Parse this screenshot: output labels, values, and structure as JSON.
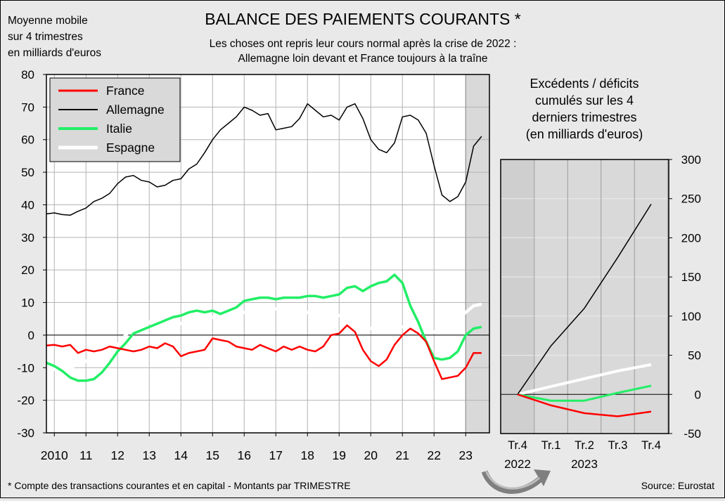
{
  "title": "BALANCE DES PAIEMENTS COURANTS *",
  "subtitle_line1": "Les choses ont repris leur cours normal après la crise de 2022 :",
  "subtitle_line2": "Allemagne loin devant et France toujours à la traîne",
  "ylabel_lines": [
    "Moyenne mobile",
    "sur 4 trimestres",
    "en milliards d'euros"
  ],
  "footnote": "* Compte des transactions courantes et en capital - Montants par TRIMESTRE",
  "source": "Source: Eurostat",
  "colors": {
    "France": "#ff0000",
    "Allemagne": "#000000",
    "Italie": "#22ee66",
    "Espagne": "#ffffff",
    "plot_bg": "#ffffff",
    "shade_bg": "#d9d9d9"
  },
  "chart_data": [
    {
      "type": "line",
      "x_tick_labels": [
        "2010",
        "11",
        "12",
        "13",
        "14",
        "15",
        "16",
        "17",
        "18",
        "19",
        "20",
        "21",
        "22",
        "23"
      ],
      "ylim": [
        -30,
        80
      ],
      "y_ticks": [
        -30,
        -20,
        -10,
        0,
        10,
        20,
        30,
        40,
        50,
        60,
        70,
        80
      ],
      "grid": true,
      "legend_position": "top-left",
      "shaded_period": "2023",
      "x_start": 2009.75,
      "x_end": 2023.75,
      "series": [
        {
          "name": "France",
          "x": [
            2009.75,
            2010,
            2010.25,
            2010.5,
            2010.75,
            2011,
            2011.25,
            2011.5,
            2011.75,
            2012,
            2012.25,
            2012.5,
            2012.75,
            2013,
            2013.25,
            2013.5,
            2013.75,
            2014,
            2014.25,
            2014.5,
            2014.75,
            2015,
            2015.25,
            2015.5,
            2015.75,
            2016,
            2016.25,
            2016.5,
            2016.75,
            2017,
            2017.25,
            2017.5,
            2017.75,
            2018,
            2018.25,
            2018.5,
            2018.75,
            2019,
            2019.25,
            2019.5,
            2019.75,
            2020,
            2020.25,
            2020.5,
            2020.75,
            2021,
            2021.25,
            2021.5,
            2021.75,
            2022,
            2022.25,
            2022.5,
            2022.75,
            2023,
            2023.25,
            2023.5
          ],
          "values": [
            -3.2,
            -3,
            -3.5,
            -3,
            -5.5,
            -4.5,
            -5,
            -4.5,
            -3.5,
            -4,
            -4.5,
            -5,
            -4.5,
            -3.5,
            -4,
            -2.5,
            -3.5,
            -6.5,
            -5.5,
            -5,
            -4.5,
            -1,
            -1.5,
            -2,
            -3.5,
            -4,
            -4.5,
            -3,
            -4,
            -5,
            -3.5,
            -4.5,
            -3.5,
            -4.5,
            -5,
            -3.5,
            0,
            0.5,
            3,
            1,
            -4.5,
            -8,
            -9.5,
            -7.5,
            -3,
            0,
            2,
            0.5,
            -2,
            -8,
            -13.5,
            -13,
            -12.5,
            -10,
            -5.5,
            -5.5
          ]
        },
        {
          "name": "Allemagne",
          "x": [
            2009.75,
            2010,
            2010.25,
            2010.5,
            2010.75,
            2011,
            2011.25,
            2011.5,
            2011.75,
            2012,
            2012.25,
            2012.5,
            2012.75,
            2013,
            2013.25,
            2013.5,
            2013.75,
            2014,
            2014.25,
            2014.5,
            2014.75,
            2015,
            2015.25,
            2015.5,
            2015.75,
            2016,
            2016.25,
            2016.5,
            2016.75,
            2017,
            2017.25,
            2017.5,
            2017.75,
            2018,
            2018.25,
            2018.5,
            2018.75,
            2019,
            2019.25,
            2019.5,
            2019.75,
            2020,
            2020.25,
            2020.5,
            2020.75,
            2021,
            2021.25,
            2021.5,
            2021.75,
            2022,
            2022.25,
            2022.5,
            2022.75,
            2023,
            2023.25,
            2023.5
          ],
          "values": [
            37.2,
            37.5,
            37,
            36.8,
            38,
            39,
            41,
            42,
            43.5,
            46.5,
            48.5,
            49,
            47.5,
            47,
            45.5,
            46,
            47.5,
            48,
            51,
            52.5,
            56,
            60,
            63,
            65,
            67,
            70,
            69,
            67.5,
            68,
            63,
            63.5,
            64,
            66.5,
            71,
            69,
            67,
            67.5,
            66,
            70,
            71,
            66.5,
            60,
            57,
            56,
            59,
            67,
            67.5,
            66,
            62,
            52,
            43,
            41,
            42.5,
            47,
            58,
            61
          ]
        },
        {
          "name": "Italie",
          "x": [
            2009.75,
            2010,
            2010.25,
            2010.5,
            2010.75,
            2011,
            2011.25,
            2011.5,
            2011.75,
            2012,
            2012.25,
            2012.5,
            2012.75,
            2013,
            2013.25,
            2013.5,
            2013.75,
            2014,
            2014.25,
            2014.5,
            2014.75,
            2015,
            2015.25,
            2015.5,
            2015.75,
            2016,
            2016.25,
            2016.5,
            2016.75,
            2017,
            2017.25,
            2017.5,
            2017.75,
            2018,
            2018.25,
            2018.5,
            2018.75,
            2019,
            2019.25,
            2019.5,
            2019.75,
            2020,
            2020.25,
            2020.5,
            2020.75,
            2021,
            2021.25,
            2021.5,
            2021.75,
            2022,
            2022.25,
            2022.5,
            2022.75,
            2023,
            2023.25,
            2023.5
          ],
          "values": [
            -8.5,
            -9.5,
            -11,
            -13,
            -14,
            -14,
            -13.5,
            -11.5,
            -8.5,
            -5,
            -2.5,
            0.5,
            1.5,
            2.5,
            3.5,
            4.5,
            5.5,
            6,
            7,
            7.5,
            7,
            7.5,
            6.5,
            7.5,
            8.5,
            10.5,
            11,
            11.5,
            11.5,
            11,
            11.5,
            11.5,
            11.5,
            12,
            12,
            11.5,
            12,
            12.5,
            14.5,
            15,
            13.5,
            15,
            16,
            16.5,
            18.5,
            16,
            9,
            4,
            -2,
            -7,
            -7.5,
            -7,
            -5,
            0,
            2,
            2.5
          ]
        },
        {
          "name": "Espagne",
          "x": [
            2009.75,
            2010,
            2010.25,
            2010.5,
            2010.75,
            2011,
            2011.25,
            2011.5,
            2011.75,
            2012,
            2012.25,
            2012.5,
            2012.75,
            2013,
            2013.25,
            2013.5,
            2013.75,
            2014,
            2014.25,
            2014.5,
            2014.75,
            2015,
            2015.25,
            2015.5,
            2015.75,
            2016,
            2016.25,
            2016.5,
            2016.75,
            2017,
            2017.25,
            2017.5,
            2017.75,
            2018,
            2018.25,
            2018.5,
            2018.75,
            2019,
            2019.25,
            2019.5,
            2019.75,
            2020,
            2020.25,
            2020.5,
            2020.75,
            2021,
            2021.25,
            2021.5,
            2021.75,
            2022,
            2022.25,
            2022.5,
            2022.75,
            2023,
            2023.25,
            2023.5
          ],
          "values": [
            -10,
            -10.5,
            -10,
            -10,
            -9,
            -8,
            -7.5,
            -6.5,
            -5,
            -3,
            0,
            2,
            3,
            4,
            5,
            5,
            4.5,
            3.5,
            4,
            4.5,
            5,
            5.5,
            6,
            5.5,
            6,
            7,
            8,
            8.5,
            8.5,
            8,
            8,
            8,
            7.5,
            7,
            6,
            5.5,
            5.5,
            6,
            6.5,
            6,
            4,
            2,
            1.5,
            2,
            2,
            2.5,
            2.5,
            2,
            1.5,
            1,
            1,
            3,
            5,
            7,
            9,
            9.5
          ]
        }
      ]
    },
    {
      "type": "line",
      "title_lines": [
        "Excédents / déficits",
        "cumulés sur les 4",
        "derniers trimestres",
        "(en milliards d'euros)"
      ],
      "categories": [
        "Tr.4",
        "Tr.1",
        "Tr.2",
        "Tr.3",
        "Tr.4"
      ],
      "year_labels": [
        "2022",
        "2023"
      ],
      "ylim": [
        -50,
        300
      ],
      "y_ticks": [
        -50,
        0,
        50,
        100,
        150,
        200,
        250,
        300
      ],
      "y_axis_side": "right",
      "grid": true,
      "series": [
        {
          "name": "Allemagne",
          "values": [
            0,
            62,
            110,
            175,
            243
          ]
        },
        {
          "name": "Espagne",
          "values": [
            0,
            10,
            20,
            30,
            38
          ]
        },
        {
          "name": "Italie",
          "values": [
            0,
            -8,
            -8,
            2,
            11
          ]
        },
        {
          "name": "France",
          "values": [
            0,
            -14,
            -24,
            -28,
            -22
          ]
        }
      ]
    }
  ]
}
